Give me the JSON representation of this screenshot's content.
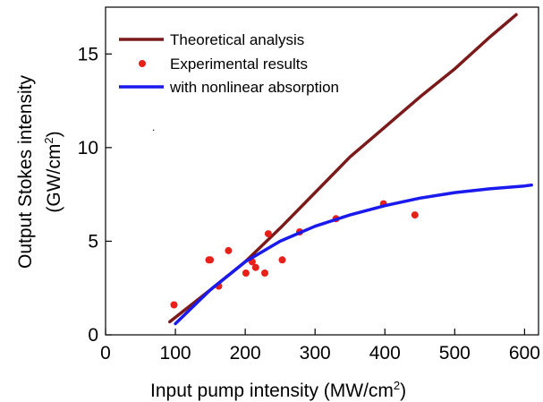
{
  "chart_data": {
    "type": "line",
    "xlabel": {
      "text": "Input pump  intensity (MW/cm",
      "sup": "2",
      "close": ")"
    },
    "ylabel": {
      "line1": "Output Stokes intensity",
      "line2_text": "(GW/cm",
      "line2_sup": "2",
      "line2_close": ")"
    },
    "xlim": [
      0,
      620
    ],
    "ylim": [
      0,
      17.5
    ],
    "xticks": [
      0,
      100,
      200,
      300,
      400,
      500,
      600
    ],
    "yticks": [
      0,
      5,
      10,
      15
    ],
    "grid": false,
    "legend_position": "top-left",
    "series": [
      {
        "name": "Theoretical analysis",
        "kind": "line",
        "color": "#7b1a1a",
        "x": [
          92,
          150,
          200,
          250,
          300,
          350,
          400,
          450,
          500,
          550,
          588
        ],
        "y": [
          0.7,
          2.4,
          3.9,
          5.7,
          7.6,
          9.5,
          11.1,
          12.7,
          14.2,
          15.9,
          17.1
        ]
      },
      {
        "name": "Experimental results",
        "kind": "scatter",
        "color": "#e8201a",
        "x": [
          98,
          148,
          150,
          162,
          176,
          201,
          210,
          215,
          228,
          233,
          253,
          278,
          330,
          398,
          443
        ],
        "y": [
          1.6,
          4.0,
          4.0,
          2.6,
          4.5,
          3.3,
          3.9,
          3.6,
          3.3,
          5.4,
          4.0,
          5.5,
          6.2,
          7.0,
          6.4
        ]
      },
      {
        "name": "with nonlinear absorption",
        "kind": "line",
        "color": "#1a1aee",
        "x": [
          100,
          150,
          200,
          250,
          300,
          350,
          400,
          450,
          500,
          550,
          600,
          610
        ],
        "y": [
          0.6,
          2.4,
          3.9,
          5.0,
          5.8,
          6.4,
          6.9,
          7.3,
          7.6,
          7.8,
          7.95,
          8.0
        ]
      }
    ],
    "annotations": [
      "."
    ]
  }
}
